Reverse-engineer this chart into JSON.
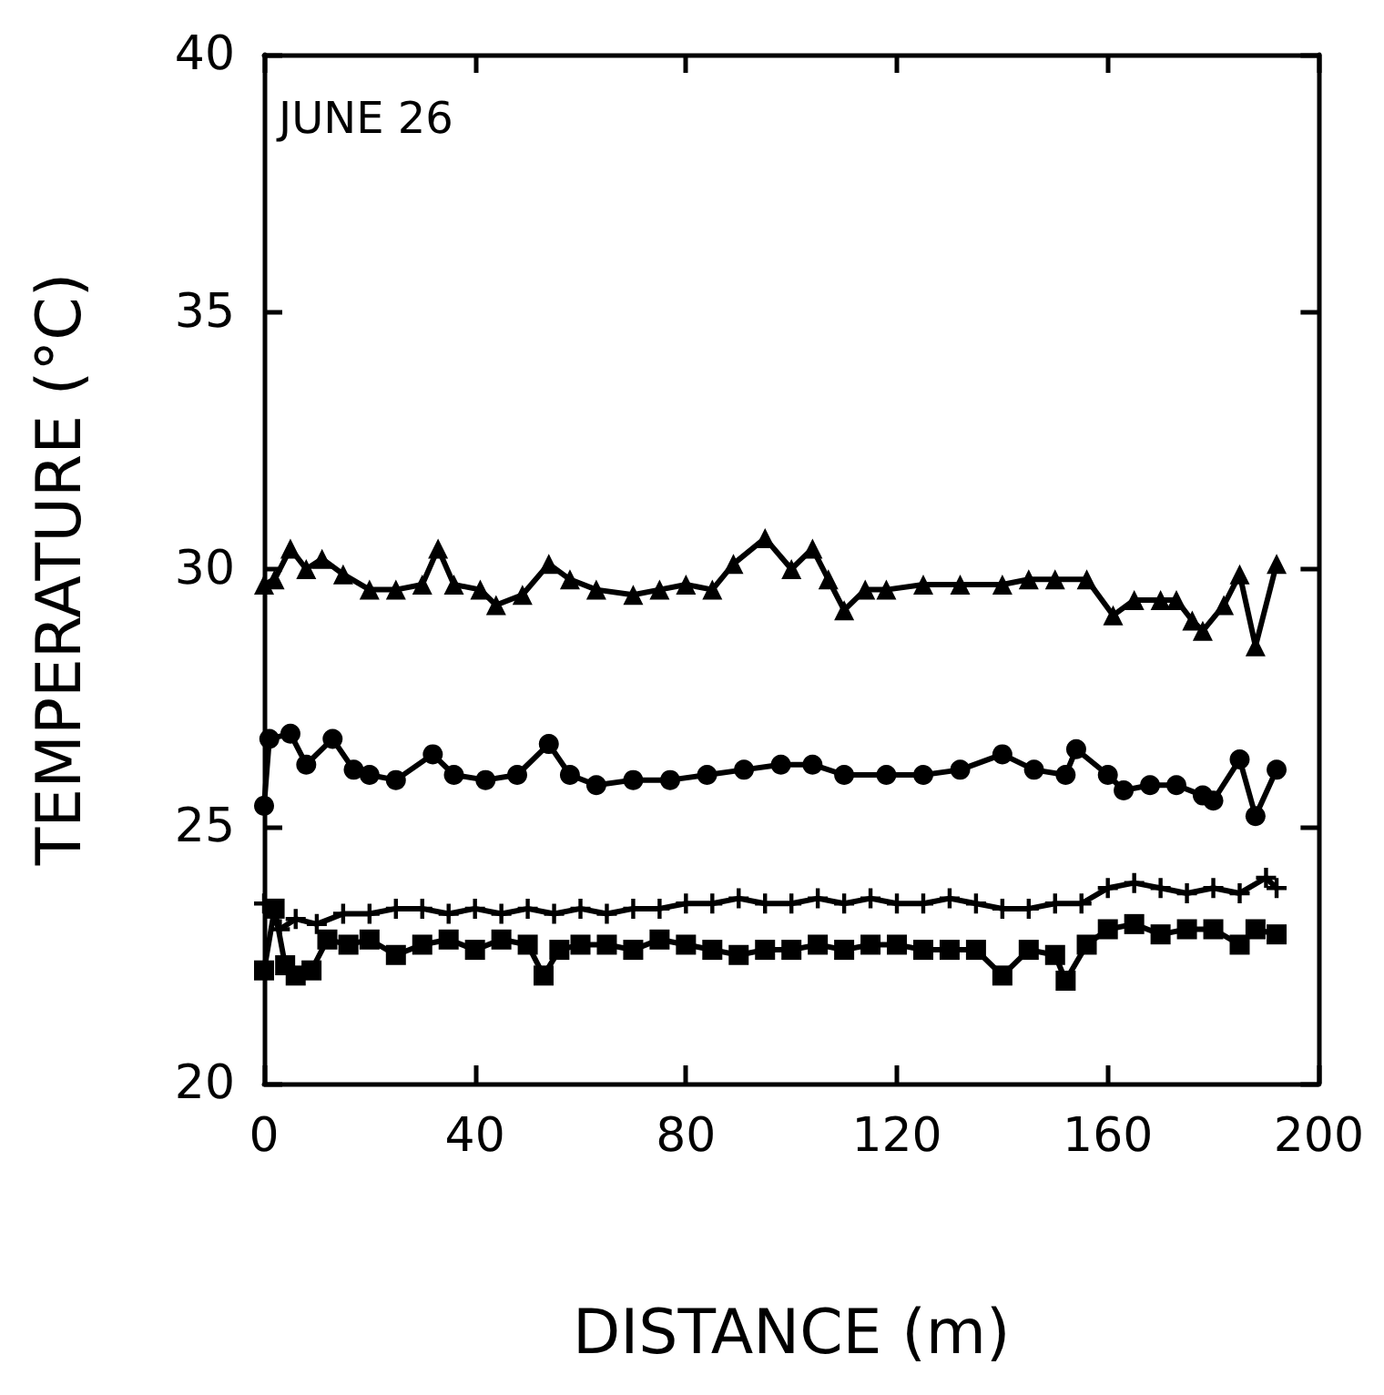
{
  "chart_data": {
    "type": "line",
    "xlabel": "DISTANCE (m)",
    "ylabel": "TEMPERATURE (°C)",
    "annotations": [
      "JUNE 26"
    ],
    "xlim": [
      0,
      200
    ],
    "xticks": [
      0,
      40,
      80,
      120,
      160,
      200
    ],
    "ylim": [
      20,
      40
    ],
    "yticks": [
      20,
      25,
      30,
      35,
      40
    ],
    "line_style": "solid",
    "series": [
      {
        "color": "#000000",
        "marker": "triangle",
        "x": [
          0,
          2,
          5,
          8,
          11,
          15,
          20,
          25,
          30,
          33,
          36,
          41,
          44,
          49,
          54,
          58,
          63,
          70,
          75,
          80,
          85,
          89,
          95,
          100,
          104,
          107,
          110,
          114,
          118,
          125,
          132,
          140,
          145,
          150,
          156,
          161,
          165,
          170,
          173,
          176,
          178,
          182,
          185,
          188,
          192
        ],
        "values": [
          29.7,
          29.8,
          30.4,
          30.0,
          30.2,
          29.9,
          29.6,
          29.6,
          29.7,
          30.4,
          29.7,
          29.6,
          29.3,
          29.5,
          30.1,
          29.8,
          29.6,
          29.5,
          29.6,
          29.7,
          29.6,
          30.1,
          30.6,
          30.0,
          30.4,
          29.8,
          29.2,
          29.6,
          29.6,
          29.7,
          29.7,
          29.7,
          29.8,
          29.8,
          29.8,
          29.1,
          29.4,
          29.4,
          29.4,
          29.0,
          28.8,
          29.3,
          29.9,
          28.5,
          30.1
        ]
      },
      {
        "color": "#000000",
        "marker": "circle",
        "x": [
          0,
          1,
          5,
          8,
          13,
          17,
          20,
          25,
          32,
          36,
          42,
          48,
          54,
          58,
          63,
          70,
          77,
          84,
          91,
          98,
          104,
          110,
          118,
          125,
          132,
          140,
          146,
          152,
          154,
          160,
          163,
          168,
          173,
          178,
          180,
          185,
          188,
          192
        ],
        "values": [
          25.4,
          26.7,
          26.8,
          26.2,
          26.7,
          26.1,
          26.0,
          25.9,
          26.4,
          26.0,
          25.9,
          26.0,
          26.6,
          26.0,
          25.8,
          25.9,
          25.9,
          26.0,
          26.1,
          26.2,
          26.2,
          26.0,
          26.0,
          26.0,
          26.1,
          26.4,
          26.1,
          26.0,
          26.5,
          26.0,
          25.7,
          25.8,
          25.8,
          25.6,
          25.5,
          26.3,
          25.2,
          26.1
        ]
      },
      {
        "color": "#000000",
        "marker": "cross",
        "x": [
          0,
          3,
          6,
          10,
          15,
          20,
          25,
          30,
          35,
          40,
          45,
          50,
          55,
          60,
          65,
          70,
          75,
          80,
          85,
          90,
          95,
          100,
          105,
          110,
          115,
          120,
          125,
          130,
          135,
          140,
          145,
          150,
          155,
          160,
          165,
          170,
          175,
          180,
          185,
          190,
          192
        ],
        "values": [
          23.5,
          23.0,
          23.2,
          23.1,
          23.3,
          23.3,
          23.4,
          23.4,
          23.3,
          23.4,
          23.3,
          23.4,
          23.3,
          23.4,
          23.3,
          23.4,
          23.4,
          23.5,
          23.5,
          23.6,
          23.5,
          23.5,
          23.6,
          23.5,
          23.6,
          23.5,
          23.5,
          23.6,
          23.5,
          23.4,
          23.4,
          23.5,
          23.5,
          23.8,
          23.9,
          23.8,
          23.7,
          23.8,
          23.7,
          24.0,
          23.8
        ]
      },
      {
        "color": "#000000",
        "marker": "square",
        "x": [
          0,
          2,
          4,
          6,
          9,
          12,
          16,
          20,
          25,
          30,
          35,
          40,
          45,
          50,
          53,
          56,
          60,
          65,
          70,
          75,
          80,
          85,
          90,
          95,
          100,
          105,
          110,
          115,
          120,
          125,
          130,
          135,
          140,
          145,
          150,
          152,
          156,
          160,
          165,
          170,
          175,
          180,
          185,
          188,
          192
        ],
        "values": [
          22.2,
          23.4,
          22.3,
          22.1,
          22.2,
          22.8,
          22.7,
          22.8,
          22.5,
          22.7,
          22.8,
          22.6,
          22.8,
          22.7,
          22.1,
          22.6,
          22.7,
          22.7,
          22.6,
          22.8,
          22.7,
          22.6,
          22.5,
          22.6,
          22.6,
          22.7,
          22.6,
          22.7,
          22.7,
          22.6,
          22.6,
          22.6,
          22.1,
          22.6,
          22.5,
          22.0,
          22.7,
          23.0,
          23.1,
          22.9,
          23.0,
          23.0,
          22.7,
          23.0,
          22.9
        ]
      }
    ]
  }
}
